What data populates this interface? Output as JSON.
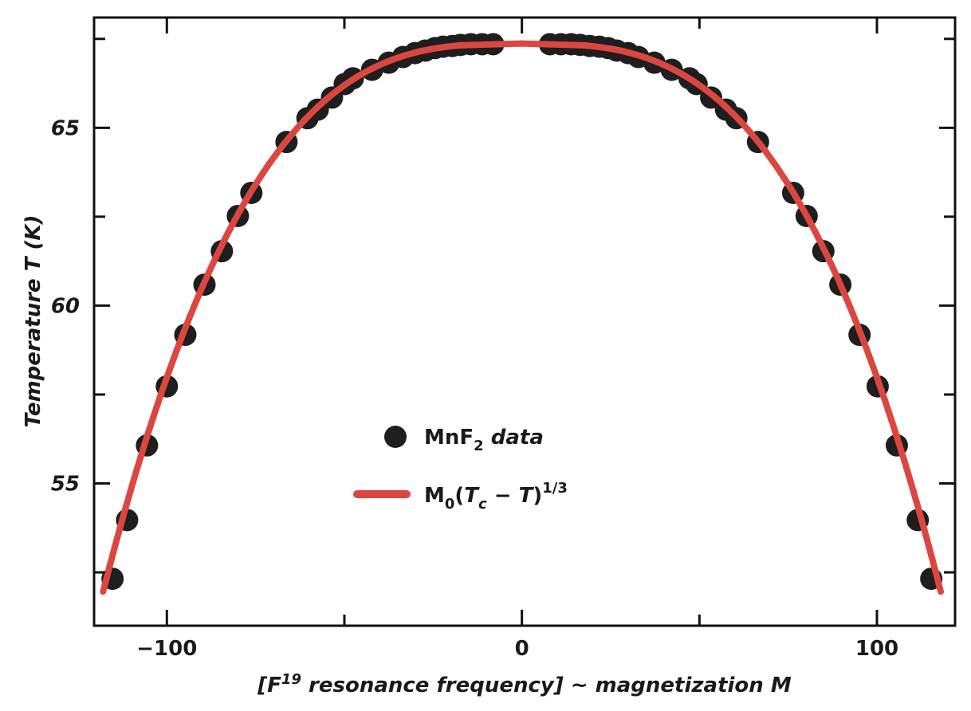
{
  "chart_data": {
    "type": "scatter",
    "title": "",
    "xlabel": "[F19 resonance frequency] ~ magnetization M",
    "xlabel_parts": {
      "pre": "[F",
      "sup": "19",
      "mid": " resonance frequency] ~ magnetization ",
      "var": "M"
    },
    "ylabel": "Temperature T (K)",
    "ylabel_parts": {
      "pre": "Temperature ",
      "var": "T",
      "post": " (K)"
    },
    "xlim": [
      -120.5,
      122
    ],
    "ylim": [
      51,
      68.1
    ],
    "x_ticks": [
      -100,
      0,
      100
    ],
    "x_tick_labels": [
      "−100",
      "0",
      "100"
    ],
    "y_ticks": [
      55,
      60,
      65
    ],
    "y_tick_labels": [
      "55",
      "60",
      "65"
    ],
    "grid": false,
    "legend_position": "center",
    "colors": {
      "data": "#1e1e1e",
      "fit": "#dc4640"
    },
    "series": [
      {
        "name": "MnF2 data",
        "kind": "scatter",
        "x": [
          -115.3,
          -111.2,
          -105.6,
          -100,
          -94.8,
          -89.4,
          -84.5,
          -80.0,
          -76.2,
          -66.3,
          -60.4,
          -57.5,
          -53.5,
          -49.9,
          -47.6,
          -42.2,
          -37.5,
          -33.5,
          -30.1,
          -27.2,
          -24.5,
          -22.2,
          -19.6,
          -17.3,
          -14.4,
          -11.2,
          -8.1,
          7.9,
          11.0,
          13.9,
          16.4,
          19.1,
          21.8,
          24.3,
          26.7,
          29.9,
          32.8,
          37.3,
          42.2,
          47.2,
          49.2,
          53.3,
          57.5,
          60.4,
          66.5,
          76.4,
          80.2,
          84.9,
          89.7,
          95.1,
          100.2,
          105.6,
          111.5,
          115.3
        ],
        "y": [
          52.32,
          53.97,
          56.07,
          57.73,
          59.18,
          60.59,
          61.53,
          62.52,
          63.17,
          64.6,
          65.27,
          65.51,
          65.85,
          66.23,
          66.39,
          66.63,
          66.83,
          66.99,
          67.1,
          67.17,
          67.24,
          67.28,
          67.3,
          67.33,
          67.35,
          67.35,
          67.35,
          67.35,
          67.35,
          67.35,
          67.33,
          67.3,
          67.28,
          67.24,
          67.17,
          67.1,
          66.99,
          66.83,
          66.63,
          66.39,
          66.23,
          65.85,
          65.51,
          65.27,
          64.6,
          63.17,
          62.52,
          61.53,
          60.59,
          59.18,
          57.73,
          56.07,
          53.97,
          52.32
        ]
      },
      {
        "name": "M0(Tc − T)^1/3",
        "kind": "line",
        "formula": {
          "M0": 47.4,
          "Tc": 67.37,
          "exponent": 0.3333
        },
        "T_range": [
          51.96,
          67.37
        ]
      }
    ],
    "legend": [
      {
        "label_main": "MnF",
        "label_sub": "2",
        "label_rest": " data"
      },
      {
        "label_main": "M",
        "label_sub0": "0",
        "label_paren": "(",
        "label_T": "T",
        "label_subc": "c",
        "label_minus": " − ",
        "label_T2": "T",
        "label_close": ")",
        "label_sup": "1/3"
      }
    ]
  }
}
